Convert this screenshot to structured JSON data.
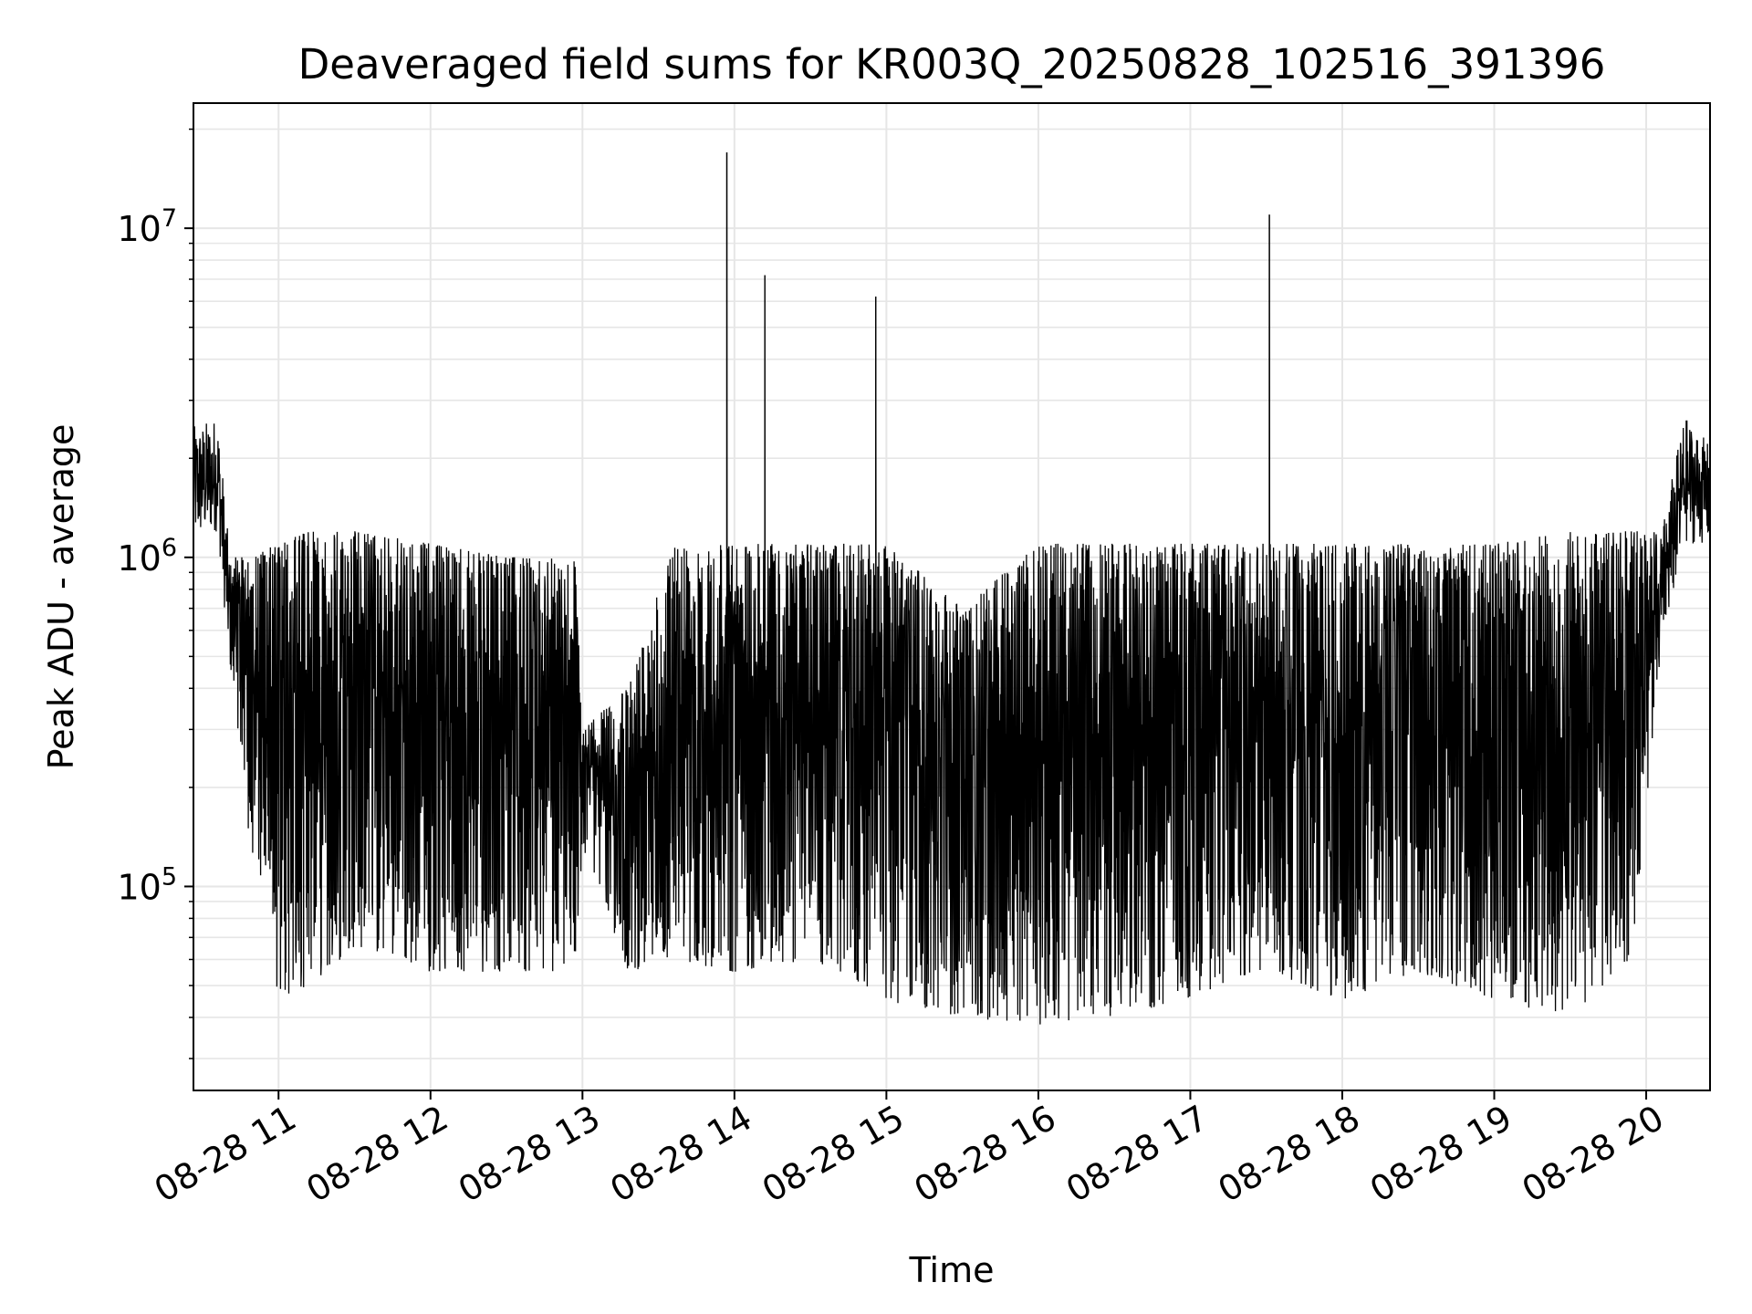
{
  "chart_data": {
    "type": "line",
    "title": "Deaveraged field sums for KR003Q_20250828_102516_391396",
    "xlabel": "Time",
    "ylabel": "Peak ADU - average",
    "yscale": "log",
    "ylim": [
      24000,
      24000000
    ],
    "xlim_hours": [
      10.44,
      20.42
    ],
    "x_ticks": [
      {
        "hour": 11,
        "label": "08-28 11"
      },
      {
        "hour": 12,
        "label": "08-28 12"
      },
      {
        "hour": 13,
        "label": "08-28 13"
      },
      {
        "hour": 14,
        "label": "08-28 14"
      },
      {
        "hour": 15,
        "label": "08-28 15"
      },
      {
        "hour": 16,
        "label": "08-28 16"
      },
      {
        "hour": 17,
        "label": "08-28 17"
      },
      {
        "hour": 18,
        "label": "08-28 18"
      },
      {
        "hour": 19,
        "label": "08-28 19"
      },
      {
        "hour": 20,
        "label": "08-28 20"
      }
    ],
    "y_ticks": [
      {
        "value": 100000,
        "base": "10",
        "exp": "5"
      },
      {
        "value": 1000000,
        "base": "10",
        "exp": "6"
      },
      {
        "value": 10000000,
        "base": "10",
        "exp": "7"
      }
    ],
    "grid": true,
    "line_color": "#000000",
    "grid_color": "#e6e6e6",
    "spikes": [
      {
        "hour": 13.95,
        "value": 17000000
      },
      {
        "hour": 14.2,
        "value": 7200000
      },
      {
        "hour": 14.93,
        "value": 6200000
      },
      {
        "hour": 17.52,
        "value": 11000000
      }
    ],
    "envelope": [
      {
        "hour": 10.44,
        "low": 1100000,
        "high": 2500000
      },
      {
        "hour": 10.6,
        "low": 1200000,
        "high": 2700000
      },
      {
        "hour": 10.68,
        "low": 450000,
        "high": 1000000
      },
      {
        "hour": 10.8,
        "low": 150000,
        "high": 1000000
      },
      {
        "hour": 11.0,
        "low": 45000,
        "high": 1100000
      },
      {
        "hour": 11.2,
        "low": 50000,
        "high": 1200000
      },
      {
        "hour": 11.5,
        "low": 65000,
        "high": 1200000
      },
      {
        "hour": 12.0,
        "low": 55000,
        "high": 1100000
      },
      {
        "hour": 12.5,
        "low": 55000,
        "high": 1000000
      },
      {
        "hour": 12.95,
        "low": 55000,
        "high": 1000000
      },
      {
        "hour": 13.0,
        "low": 130000,
        "high": 300000
      },
      {
        "hour": 13.3,
        "low": 55000,
        "high": 400000
      },
      {
        "hour": 13.6,
        "low": 60000,
        "high": 1100000
      },
      {
        "hour": 14.0,
        "low": 55000,
        "high": 1100000
      },
      {
        "hour": 14.5,
        "low": 60000,
        "high": 1100000
      },
      {
        "hour": 15.0,
        "low": 45000,
        "high": 1100000
      },
      {
        "hour": 15.5,
        "low": 40000,
        "high": 700000
      },
      {
        "hour": 16.0,
        "low": 38000,
        "high": 1100000
      },
      {
        "hour": 16.5,
        "low": 40000,
        "high": 1100000
      },
      {
        "hour": 17.0,
        "low": 45000,
        "high": 1100000
      },
      {
        "hour": 17.5,
        "low": 55000,
        "high": 1100000
      },
      {
        "hour": 18.0,
        "low": 45000,
        "high": 1100000
      },
      {
        "hour": 18.5,
        "low": 55000,
        "high": 1100000
      },
      {
        "hour": 19.0,
        "low": 45000,
        "high": 1100000
      },
      {
        "hour": 19.5,
        "low": 40000,
        "high": 1200000
      },
      {
        "hour": 19.9,
        "low": 60000,
        "high": 1200000
      },
      {
        "hour": 20.1,
        "low": 500000,
        "high": 1200000
      },
      {
        "hour": 20.25,
        "low": 1100000,
        "high": 2700000
      },
      {
        "hour": 20.42,
        "low": 1100000,
        "high": 2200000
      }
    ]
  }
}
